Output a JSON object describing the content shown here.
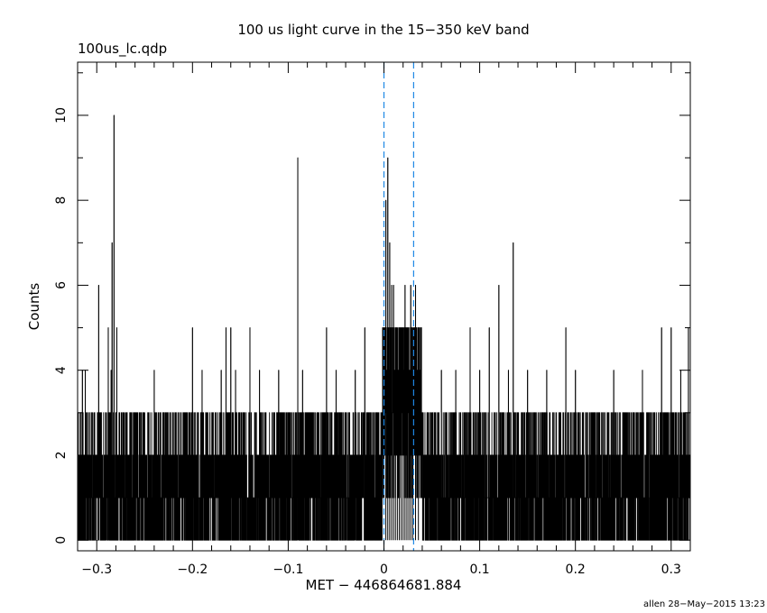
{
  "chart_data": {
    "type": "line",
    "title": "100 us light curve in the 15−350 keV band",
    "subtitle": "100us_lc.qdp",
    "xlabel": "MET − 446864681.884",
    "ylabel": "Counts",
    "footer": "allen 28−May−2015 13:23",
    "xlim": [
      -0.32,
      0.32
    ],
    "ylim": [
      -0.25,
      11.25
    ],
    "x_ticks": [
      -0.3,
      -0.2,
      -0.1,
      0,
      0.1,
      0.2,
      0.3
    ],
    "x_tick_labels": [
      "−0.3",
      "−0.2",
      "−0.1",
      "0",
      "0.1",
      "0.2",
      "0.3"
    ],
    "y_ticks": [
      0,
      2,
      4,
      6,
      8,
      10
    ],
    "y_tick_labels": [
      "0",
      "2",
      "4",
      "6",
      "8",
      "10"
    ],
    "bin_width": 0.0001,
    "series_color": "#000000",
    "marker_color": "#1e88e5",
    "vertical_markers": [
      0.0,
      0.031
    ],
    "peaks": [
      {
        "x": -0.315,
        "y": 4
      },
      {
        "x": -0.312,
        "y": 4
      },
      {
        "x": -0.303,
        "y": 3
      },
      {
        "x": -0.298,
        "y": 6
      },
      {
        "x": -0.29,
        "y": 3
      },
      {
        "x": -0.288,
        "y": 5
      },
      {
        "x": -0.285,
        "y": 4
      },
      {
        "x": -0.284,
        "y": 7
      },
      {
        "x": -0.282,
        "y": 10
      },
      {
        "x": -0.279,
        "y": 5
      },
      {
        "x": -0.27,
        "y": 3
      },
      {
        "x": -0.26,
        "y": 3
      },
      {
        "x": -0.25,
        "y": 3
      },
      {
        "x": -0.24,
        "y": 4
      },
      {
        "x": -0.22,
        "y": 3
      },
      {
        "x": -0.2,
        "y": 5
      },
      {
        "x": -0.19,
        "y": 4
      },
      {
        "x": -0.185,
        "y": 3
      },
      {
        "x": -0.17,
        "y": 4
      },
      {
        "x": -0.165,
        "y": 5
      },
      {
        "x": -0.16,
        "y": 5
      },
      {
        "x": -0.155,
        "y": 4
      },
      {
        "x": -0.14,
        "y": 5
      },
      {
        "x": -0.13,
        "y": 4
      },
      {
        "x": -0.11,
        "y": 4
      },
      {
        "x": -0.105,
        "y": 3
      },
      {
        "x": -0.09,
        "y": 9
      },
      {
        "x": -0.085,
        "y": 4
      },
      {
        "x": -0.07,
        "y": 3
      },
      {
        "x": -0.06,
        "y": 5
      },
      {
        "x": -0.05,
        "y": 4
      },
      {
        "x": -0.04,
        "y": 3
      },
      {
        "x": -0.03,
        "y": 4
      },
      {
        "x": -0.02,
        "y": 5
      },
      {
        "x": -0.01,
        "y": 3
      },
      {
        "x": 0.002,
        "y": 8
      },
      {
        "x": 0.004,
        "y": 9
      },
      {
        "x": 0.006,
        "y": 7
      },
      {
        "x": 0.008,
        "y": 6
      },
      {
        "x": 0.01,
        "y": 6
      },
      {
        "x": 0.012,
        "y": 5
      },
      {
        "x": 0.014,
        "y": 5
      },
      {
        "x": 0.016,
        "y": 4
      },
      {
        "x": 0.018,
        "y": 5
      },
      {
        "x": 0.02,
        "y": 4
      },
      {
        "x": 0.022,
        "y": 6
      },
      {
        "x": 0.024,
        "y": 5
      },
      {
        "x": 0.026,
        "y": 4
      },
      {
        "x": 0.028,
        "y": 6
      },
      {
        "x": 0.03,
        "y": 5
      },
      {
        "x": 0.033,
        "y": 6
      },
      {
        "x": 0.036,
        "y": 4
      },
      {
        "x": 0.05,
        "y": 3
      },
      {
        "x": 0.06,
        "y": 4
      },
      {
        "x": 0.075,
        "y": 4
      },
      {
        "x": 0.09,
        "y": 5
      },
      {
        "x": 0.1,
        "y": 4
      },
      {
        "x": 0.11,
        "y": 5
      },
      {
        "x": 0.12,
        "y": 6
      },
      {
        "x": 0.13,
        "y": 4
      },
      {
        "x": 0.135,
        "y": 7
      },
      {
        "x": 0.15,
        "y": 4
      },
      {
        "x": 0.17,
        "y": 4
      },
      {
        "x": 0.19,
        "y": 5
      },
      {
        "x": 0.2,
        "y": 4
      },
      {
        "x": 0.22,
        "y": 3
      },
      {
        "x": 0.24,
        "y": 4
      },
      {
        "x": 0.25,
        "y": 3
      },
      {
        "x": 0.27,
        "y": 4
      },
      {
        "x": 0.29,
        "y": 5
      },
      {
        "x": 0.3,
        "y": 5
      },
      {
        "x": 0.31,
        "y": 4
      },
      {
        "x": 0.318,
        "y": 5
      }
    ],
    "zero_bins": [
      -0.19,
      -0.136,
      0.044,
      0.06,
      0.27
    ]
  }
}
